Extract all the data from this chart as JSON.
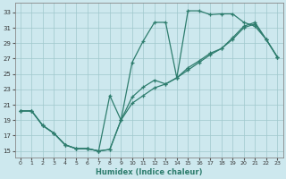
{
  "xlabel": "Humidex (Indice chaleur)",
  "bg_color": "#cde8ee",
  "grid_color": "#a0c8cc",
  "line_color": "#2e7d6e",
  "xlim": [
    -0.5,
    23.5
  ],
  "ylim": [
    14.2,
    34.2
  ],
  "xticks": [
    0,
    1,
    2,
    3,
    4,
    5,
    6,
    7,
    8,
    9,
    10,
    11,
    12,
    13,
    14,
    15,
    16,
    17,
    18,
    19,
    20,
    21,
    22,
    23
  ],
  "yticks": [
    15,
    17,
    19,
    21,
    23,
    25,
    27,
    29,
    31,
    33
  ],
  "line1_x": [
    0,
    1,
    2,
    3,
    4,
    5,
    6,
    7,
    8,
    9,
    10,
    11,
    12,
    13,
    14,
    15,
    16,
    17,
    18,
    19,
    20,
    21,
    22,
    23
  ],
  "line1_y": [
    20.2,
    20.2,
    18.3,
    17.3,
    15.8,
    15.3,
    15.3,
    15.0,
    22.2,
    19.0,
    26.5,
    29.3,
    31.7,
    31.7,
    24.5,
    33.2,
    33.2,
    32.7,
    32.8,
    32.8,
    31.7,
    31.2,
    29.5,
    27.2
  ],
  "line2_x": [
    0,
    1,
    2,
    3,
    4,
    5,
    6,
    7,
    8,
    9,
    10,
    11,
    12,
    13,
    14,
    15,
    16,
    17,
    18,
    19,
    20,
    21,
    22,
    23
  ],
  "line2_y": [
    20.2,
    20.2,
    18.3,
    17.3,
    15.8,
    15.3,
    15.3,
    15.0,
    15.2,
    19.0,
    22.0,
    23.3,
    24.2,
    23.7,
    24.5,
    25.8,
    26.7,
    27.7,
    28.3,
    29.7,
    31.2,
    31.7,
    29.5,
    27.2
  ],
  "line3_x": [
    0,
    1,
    2,
    3,
    4,
    5,
    6,
    7,
    8,
    9,
    10,
    11,
    12,
    13,
    14,
    15,
    16,
    17,
    18,
    19,
    20,
    21,
    22,
    23
  ],
  "line3_y": [
    20.2,
    20.2,
    18.3,
    17.3,
    15.8,
    15.3,
    15.3,
    15.0,
    15.2,
    19.0,
    21.2,
    22.2,
    23.2,
    23.7,
    24.5,
    25.5,
    26.5,
    27.5,
    28.3,
    29.5,
    31.0,
    31.5,
    29.5,
    27.2
  ]
}
